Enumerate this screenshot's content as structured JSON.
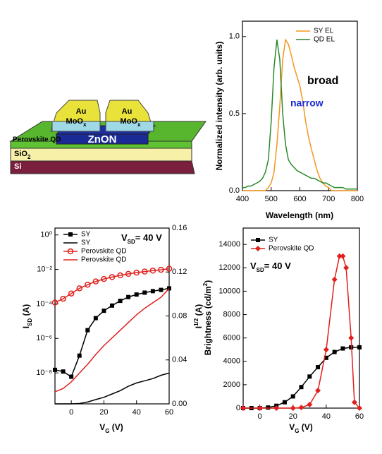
{
  "diagram": {
    "labels": {
      "au_left": "Au",
      "moox_left": [
        "MoO",
        "x"
      ],
      "au_right": "Au",
      "moox_right": [
        "MoO",
        "x"
      ],
      "znon": "ZnON",
      "perovskite": "Perovskite QD",
      "sio2": [
        "SiO",
        "2"
      ],
      "si": "Si"
    }
  },
  "chart_data": [
    {
      "type": "line",
      "xlabel": "Wavelength (nm)",
      "ylabel": "Normalized intensity (arb. units)",
      "x": [
        400,
        410,
        420,
        430,
        440,
        450,
        460,
        470,
        480,
        490,
        500,
        510,
        520,
        530,
        540,
        550,
        560,
        570,
        580,
        590,
        600,
        610,
        620,
        630,
        640,
        650,
        660,
        670,
        680,
        690,
        700,
        710,
        720,
        730,
        740,
        750,
        760,
        770,
        780,
        790,
        800
      ],
      "series": [
        {
          "name": "SY EL",
          "color": "#f5961e",
          "values": [
            0,
            0,
            0,
            0,
            0,
            0,
            0,
            0,
            0,
            0.02,
            0.05,
            0.12,
            0.3,
            0.55,
            0.85,
            0.98,
            0.95,
            0.88,
            0.8,
            0.74,
            0.68,
            0.58,
            0.45,
            0.35,
            0.27,
            0.2,
            0.13,
            0.08,
            0.05,
            0.03,
            0.02,
            0,
            0,
            0,
            0,
            0,
            0,
            0,
            0,
            0,
            0
          ]
        },
        {
          "name": "QD EL",
          "color": "#2a8a2a",
          "values": [
            0.02,
            0.02,
            0.03,
            0.03,
            0.04,
            0.05,
            0.06,
            0.08,
            0.12,
            0.2,
            0.45,
            0.8,
            0.98,
            0.85,
            0.5,
            0.3,
            0.2,
            0.17,
            0.15,
            0.13,
            0.12,
            0.11,
            0.1,
            0.09,
            0.08,
            0.08,
            0.07,
            0.06,
            0.05,
            0.05,
            0.04,
            0.03,
            0.02,
            0.02,
            0.02,
            0.02,
            0.01,
            0.01,
            0.01,
            0.01,
            0.01
          ]
        }
      ],
      "xlim": [
        400,
        800
      ],
      "xticks": [
        400,
        500,
        600,
        700,
        800
      ],
      "ylim": [
        0,
        1.1
      ],
      "yticks": [
        {
          "value": 0,
          "label": "0.0"
        },
        0.5,
        {
          "value": 1,
          "label": "1.0"
        }
      ],
      "annotations": [
        {
          "text": "broad",
          "color": "#000000"
        },
        {
          "text": "narrow",
          "color": "#1a2ad0"
        }
      ]
    },
    {
      "type": "line",
      "xlabel": [
        "V",
        "G",
        " (V)"
      ],
      "ylabel": [
        "I",
        "SD",
        " (A)"
      ],
      "y2label": [
        "I",
        "1/2",
        " (A)"
      ],
      "x": [
        -10,
        -5,
        0,
        5,
        10,
        15,
        20,
        25,
        30,
        35,
        40,
        45,
        50,
        55,
        60
      ],
      "series": [
        {
          "name": "SY",
          "color": "#000000",
          "marker": "square",
          "values": [
            1.5e-08,
            1.2e-08,
            6e-09,
            1e-07,
            3e-06,
            1.5e-05,
            4e-05,
            8e-05,
            0.00015,
            0.00025,
            0.00035,
            0.00045,
            0.00055,
            0.00065,
            0.0008
          ]
        },
        {
          "name": "SY",
          "color": "#000000",
          "axis": "y2",
          "values": [
            0,
            0,
            0,
            0.0003,
            0.0017,
            0.0039,
            0.006,
            0.009,
            0.012,
            0.016,
            0.019,
            0.021,
            0.023,
            0.026,
            0.028
          ]
        },
        {
          "name": "Perovskite QD",
          "color": "#e0201c",
          "marker": "circle",
          "values": [
            0.00012,
            0.0002,
            0.0004,
            0.0008,
            0.0013,
            0.002,
            0.0028,
            0.0036,
            0.0045,
            0.0055,
            0.0065,
            0.0075,
            0.0085,
            0.0095,
            0.011
          ]
        },
        {
          "name": "Perovskite QD",
          "color": "#e0201c",
          "axis": "y2",
          "values": [
            0.011,
            0.014,
            0.02,
            0.028,
            0.036,
            0.045,
            0.053,
            0.06,
            0.067,
            0.074,
            0.081,
            0.087,
            0.092,
            0.097,
            0.105
          ]
        }
      ],
      "xlim": [
        -10,
        60
      ],
      "xticks": [
        0,
        20,
        40,
        60
      ],
      "ylog": true,
      "ylim": [
        1.6e-10,
        2.5
      ],
      "yticks": [
        {
          "value": 1,
          "label": "10⁰"
        },
        {
          "value": 0.01,
          "label": "10⁻²"
        },
        {
          "value": 0.0001,
          "label": "10⁻⁴"
        },
        {
          "value": 1e-06,
          "label": "10⁻⁶"
        },
        {
          "value": 1e-08,
          "label": "10⁻⁸"
        }
      ],
      "y2lim": [
        0,
        0.16
      ],
      "y2ticks": [
        {
          "value": 0,
          "label": "0.00"
        },
        0.04,
        0.08,
        0.12,
        0.16
      ],
      "annotations": [
        {
          "text": [
            "V",
            "SD",
            "= 40 V"
          ],
          "color": "#000000"
        }
      ]
    },
    {
      "type": "line",
      "xlabel": [
        "V",
        "G",
        " (V)"
      ],
      "ylabel": [
        "Brightness (cd/m",
        "2",
        ")"
      ],
      "series": [
        {
          "name": "SY",
          "color": "#000000",
          "marker": "square",
          "x": [
            -10,
            -5,
            0,
            5,
            10,
            15,
            20,
            25,
            30,
            35,
            40,
            45,
            50,
            55,
            60
          ],
          "values": [
            0,
            0,
            0,
            50,
            200,
            500,
            1000,
            1800,
            2700,
            3500,
            4300,
            4800,
            5100,
            5200,
            5200
          ]
        },
        {
          "name": "Perovskite QD",
          "color": "#e0201c",
          "marker": "diamond",
          "x": [
            -10,
            0,
            10,
            20,
            25,
            30,
            35,
            40,
            45,
            48,
            50,
            52,
            55,
            57,
            60
          ],
          "values": [
            0,
            0,
            0,
            0,
            50,
            300,
            1500,
            5000,
            11000,
            13000,
            13000,
            12000,
            6000,
            500,
            0
          ]
        }
      ],
      "xlim": [
        -10,
        60
      ],
      "xticks": [
        0,
        20,
        40,
        60
      ],
      "ylim": [
        0,
        15400
      ],
      "yticks": [
        0,
        2000,
        4000,
        6000,
        8000,
        10000,
        12000,
        14000
      ],
      "annotations": [
        {
          "text": [
            "V",
            "SD",
            "= 40 V"
          ],
          "color": "#000000"
        }
      ]
    }
  ]
}
